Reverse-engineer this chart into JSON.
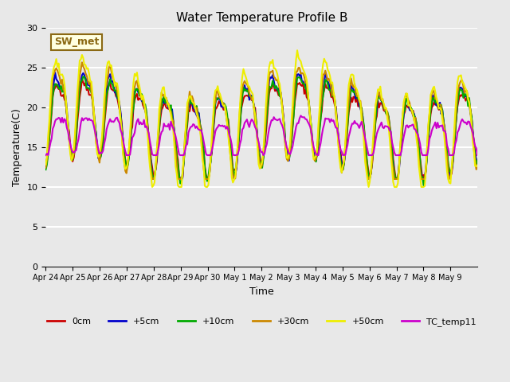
{
  "title": "Water Temperature Profile B",
  "xlabel": "Time",
  "ylabel": "Temperature(C)",
  "ylim": [
    0,
    30
  ],
  "yticks": [
    0,
    5,
    10,
    15,
    20,
    25,
    30
  ],
  "x_labels": [
    "Apr 24",
    "Apr 25",
    "Apr 26",
    "Apr 27",
    "Apr 28",
    "Apr 29",
    "Apr 30",
    "May 1",
    "May 2",
    "May 3",
    "May 4",
    "May 5",
    "May 6",
    "May 7",
    "May 8",
    "May 9"
  ],
  "background_color": "#e8e8e8",
  "plot_bg_color": "#e8e8e8",
  "grid_color": "white",
  "annotation_text": "SW_met",
  "annotation_bg": "lightyellow",
  "annotation_border": "#8B6914",
  "series": {
    "0cm": {
      "color": "#cc0000",
      "lw": 1.5
    },
    "+5cm": {
      "color": "#0000cc",
      "lw": 1.5
    },
    "+10cm": {
      "color": "#00aa00",
      "lw": 1.5
    },
    "+30cm": {
      "color": "#cc8800",
      "lw": 1.5
    },
    "+50cm": {
      "color": "#eeee00",
      "lw": 1.5
    },
    "TC_temp11": {
      "color": "#cc00cc",
      "lw": 1.5
    }
  },
  "n_points": 370
}
